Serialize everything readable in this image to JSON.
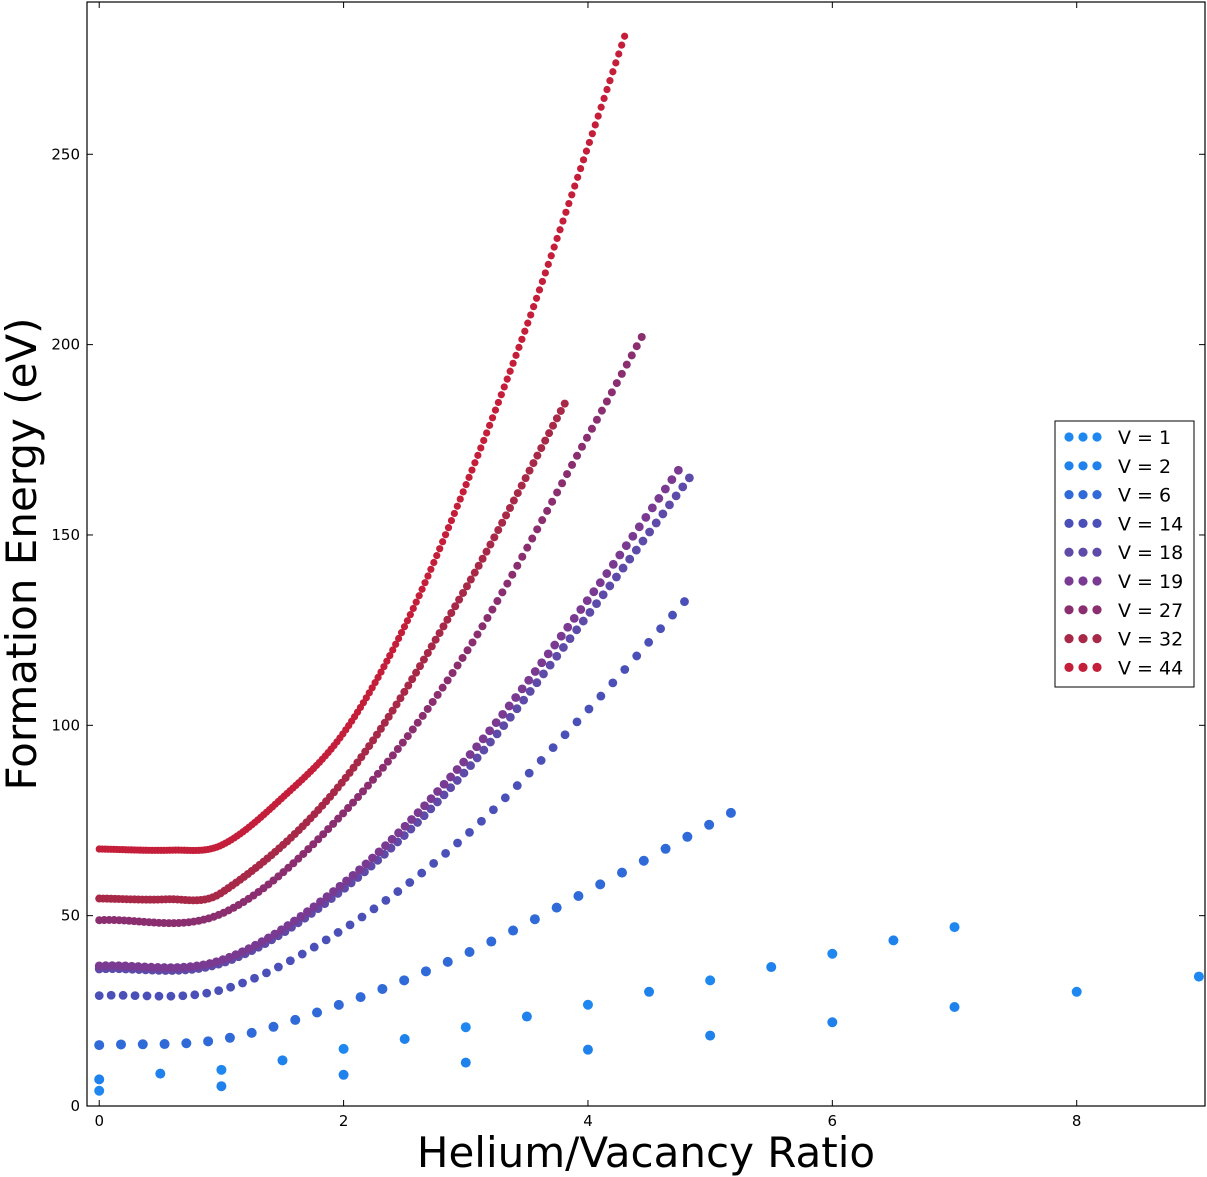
{
  "chart_data": {
    "type": "scatter",
    "title": "",
    "xlabel": "Helium/Vacancy Ratio",
    "ylabel": "Formation Energy (eV)",
    "xlim": [
      -0.1,
      9.05
    ],
    "ylim": [
      0,
      290
    ],
    "xticks": [
      0,
      2,
      4,
      6,
      8
    ],
    "yticks": [
      0,
      50,
      100,
      150,
      200,
      250
    ],
    "grid": false,
    "legend_position": "center-right",
    "series": [
      {
        "name": "V = 1",
        "color": "#1e88f0",
        "x": [
          0,
          1,
          2,
          3,
          4,
          5,
          6,
          7,
          8,
          9
        ],
        "y": [
          4,
          9.5,
          15,
          20.7,
          26.6,
          33,
          40,
          47,
          30,
          34
        ]
      },
      {
        "name": "V = 2",
        "color": "#1f82ec",
        "x": [
          0,
          0.5,
          1,
          1.5,
          2,
          2.5,
          3,
          3.5,
          4,
          4.5,
          5,
          5.5,
          6,
          6.5,
          7
        ],
        "y": [
          7,
          8.5,
          5.2,
          12,
          8.2,
          17.6,
          11.4,
          23.5,
          14.8,
          30,
          18.5,
          36.5,
          22,
          43.5,
          26
        ]
      },
      {
        "name": "V = 6",
        "color": "#2f6ad8",
        "n": 30,
        "xmax": 5.17,
        "knots": [
          [
            0,
            16
          ],
          [
            1,
            17.5
          ],
          [
            2,
            27
          ],
          [
            3,
            40
          ],
          [
            4,
            56.5
          ],
          [
            5.17,
            77
          ]
        ]
      },
      {
        "name": "V = 14",
        "color": "#4a50b8",
        "n": 50,
        "xmax": 4.79,
        "knots": [
          [
            0,
            29
          ],
          [
            1,
            30.5
          ],
          [
            2,
            46.5
          ],
          [
            3,
            71
          ],
          [
            4,
            104
          ],
          [
            4.79,
            132.5
          ]
        ]
      },
      {
        "name": "V = 18",
        "color": "#5e4aa8",
        "n": 90,
        "xmax": 4.83,
        "knots": [
          [
            0,
            36
          ],
          [
            1,
            37.5
          ],
          [
            2,
            57
          ],
          [
            3,
            88
          ],
          [
            4,
            129
          ],
          [
            4.83,
            165
          ]
        ]
      },
      {
        "name": "V = 19",
        "color": "#7a3a92",
        "n": 90,
        "xmax": 4.74,
        "knots": [
          [
            0,
            36.8
          ],
          [
            1,
            38.3
          ],
          [
            2,
            58.5
          ],
          [
            3,
            91
          ],
          [
            4,
            133
          ],
          [
            4.74,
            167
          ]
        ]
      },
      {
        "name": "V = 27",
        "color": "#8a2e70",
        "n": 110,
        "xmax": 4.44,
        "knots": [
          [
            0,
            48.8
          ],
          [
            1,
            50.5
          ],
          [
            2,
            77
          ],
          [
            3,
            119
          ],
          [
            4,
            176
          ],
          [
            4.44,
            202
          ]
        ]
      },
      {
        "name": "V = 32",
        "color": "#a82848",
        "n": 120,
        "xmax": 3.81,
        "knots": [
          [
            0,
            54.5
          ],
          [
            0.55,
            54.3
          ],
          [
            1,
            56
          ],
          [
            2,
            85.5
          ],
          [
            3,
            136
          ],
          [
            3.81,
            184.5
          ]
        ]
      },
      {
        "name": "V = 44",
        "color": "#c41e3a",
        "n": 180,
        "xmax": 4.3,
        "knots": [
          [
            0,
            67.5
          ],
          [
            0.6,
            67.2
          ],
          [
            1,
            68.5
          ],
          [
            1.5,
            81
          ],
          [
            2,
            98
          ],
          [
            2.5,
            126
          ],
          [
            3,
            163
          ],
          [
            3.5,
            205
          ],
          [
            4,
            252
          ],
          [
            4.3,
            281
          ]
        ]
      }
    ]
  }
}
